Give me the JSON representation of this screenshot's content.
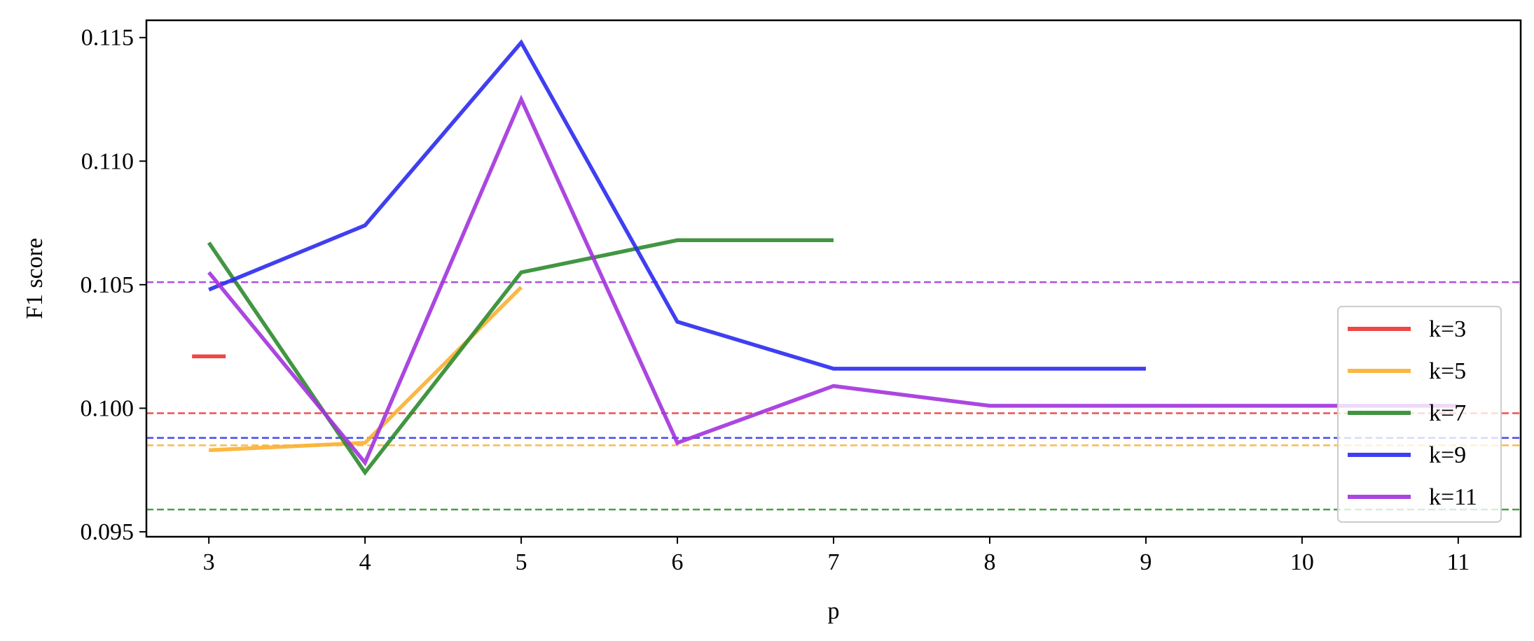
{
  "chart_data": {
    "type": "line",
    "title": "",
    "xlabel": "p",
    "ylabel": "F1 score",
    "xlim": [
      2.6,
      11.4
    ],
    "ylim": [
      0.0948,
      0.1157
    ],
    "xticks": [
      3,
      4,
      5,
      6,
      7,
      8,
      9,
      10,
      11
    ],
    "yticks": [
      0.095,
      0.1,
      0.105,
      0.11,
      0.115
    ],
    "ytick_labels": [
      "0.095",
      "0.100",
      "0.105",
      "0.110",
      "0.115"
    ],
    "grid": false,
    "legend_position": "lower right",
    "series": [
      {
        "name": "k=3",
        "color": "#ee3333",
        "x": [
          3
        ],
        "y": [
          0.1021
        ],
        "baseline": 0.0998
      },
      {
        "name": "k=5",
        "color": "#fbb030",
        "x": [
          3,
          4,
          5
        ],
        "y": [
          0.0983,
          0.0986,
          0.1049
        ],
        "baseline": 0.0985
      },
      {
        "name": "k=7",
        "color": "#2e8b2e",
        "x": [
          3,
          4,
          5,
          6,
          7
        ],
        "y": [
          0.1067,
          0.0974,
          0.1055,
          0.1068,
          0.1068
        ],
        "baseline": 0.0959
      },
      {
        "name": "k=9",
        "color": "#2a2af0",
        "x": [
          3,
          4,
          5,
          6,
          7,
          8,
          9
        ],
        "y": [
          0.1048,
          0.1074,
          0.1148,
          0.1035,
          0.1016,
          0.1016,
          0.1016
        ],
        "baseline": 0.0988
      },
      {
        "name": "k=11",
        "color": "#a233dd",
        "x": [
          3,
          4,
          5,
          6,
          7,
          8,
          9,
          10,
          11
        ],
        "y": [
          0.1055,
          0.0978,
          0.1125,
          0.0986,
          0.1009,
          0.1001,
          0.1001,
          0.1001,
          0.1001
        ],
        "baseline": 0.1051
      }
    ]
  }
}
